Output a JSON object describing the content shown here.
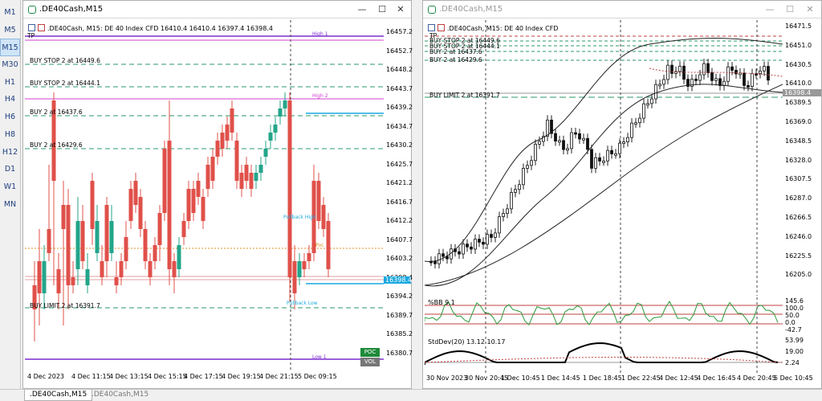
{
  "timeframes": [
    "M1",
    "M5",
    "M15",
    "M30",
    "H1",
    "H4",
    "H6",
    "H8",
    "H12",
    "D1",
    "W1",
    "MN"
  ],
  "active_timeframe": "M15",
  "left": {
    "title": ".DE40Cash,M15",
    "header": ".DE40Cash, M15:  DE 40 Index CFD   16410.4 16410.4 16397.4 16398.4",
    "tp_label": "TP",
    "prices": [
      "16457.2",
      "16452.7",
      "16448.2",
      "16443.7",
      "16439.2",
      "16434.7",
      "16430.2",
      "16425.7",
      "16421.2",
      "16416.7",
      "16412.2",
      "16407.7",
      "16403.2",
      "16398.4",
      "16394.2",
      "16389.7",
      "16385.2",
      "16380.7"
    ],
    "current_price": "16398.4",
    "times": [
      "4 Dec 2023",
      "4 Dec 11:15",
      "4 Dec 13:15",
      "4 Dec 15:15",
      "4 Dec 17:15",
      "4 Dec 19:15",
      "4 Dec 21:15",
      "5 Dec 09:15"
    ],
    "orders": [
      "BUY STOP 2 at 16449.6",
      "BUY STOP 2 at 16444.1",
      "BUY 2 at 16437.6",
      "BUY 2 at 16429.6",
      "BUY LIMIT 2 at 16391.7"
    ],
    "high1": "High 1",
    "high2": "High 2",
    "low1": "Low 1",
    "pullback_high": "Pullback High",
    "pullback_low": "Pullback Low",
    "poc": "Poc",
    "poc_btn": "POC",
    "vol_btn": "VOL"
  },
  "right": {
    "title": ".DE40Cash,M15",
    "header": ".DE40Cash, M15:  DE 40 Index CFD",
    "tp_label": "TP",
    "prices": [
      "16471.5",
      "16451.0",
      "16430.5",
      "16410.0",
      "16389.5",
      "16369.0",
      "16348.5",
      "16328.0",
      "16307.5",
      "16287.0",
      "16266.5",
      "16246.0",
      "16225.5",
      "16205.0"
    ],
    "current_price": "16398.4",
    "orders": [
      "BUY STOP 2 at 16449.6",
      "BUY STOP 2 at 16444.1",
      "BUY 2 at 16437.6",
      "BUY 2 at 16429.6",
      "BUY LIMIT 2 at 16391.7"
    ],
    "bb_label": "%BB 9.1",
    "bb_scale": [
      "145.6",
      "100.0",
      "50.0",
      "0.0",
      "-42.7"
    ],
    "std_label": "StdDev(20) 13.12 10.17",
    "std_scale": [
      "53.99",
      "19.00",
      "2.24"
    ],
    "times": [
      "30 Nov 2023",
      "30 Nov 20:45",
      "1 Dec 10:45",
      "1 Dec 14:45",
      "1 Dec 18:45",
      "1 Dec 22:45",
      "4 Dec 12:45",
      "4 Dec 16:45",
      "4 Dec 20:45",
      "5 Dec 10:45"
    ]
  },
  "tabs": [
    ".DE40Cash,M15",
    ".DE40Cash,M15"
  ],
  "colors": {
    "bull": "#23a58a",
    "bear": "#e0504a",
    "purple": "#7b2fd0",
    "magenta": "#d040d0",
    "cyan": "#18a8e0",
    "order_line": "#2a9a6a"
  }
}
